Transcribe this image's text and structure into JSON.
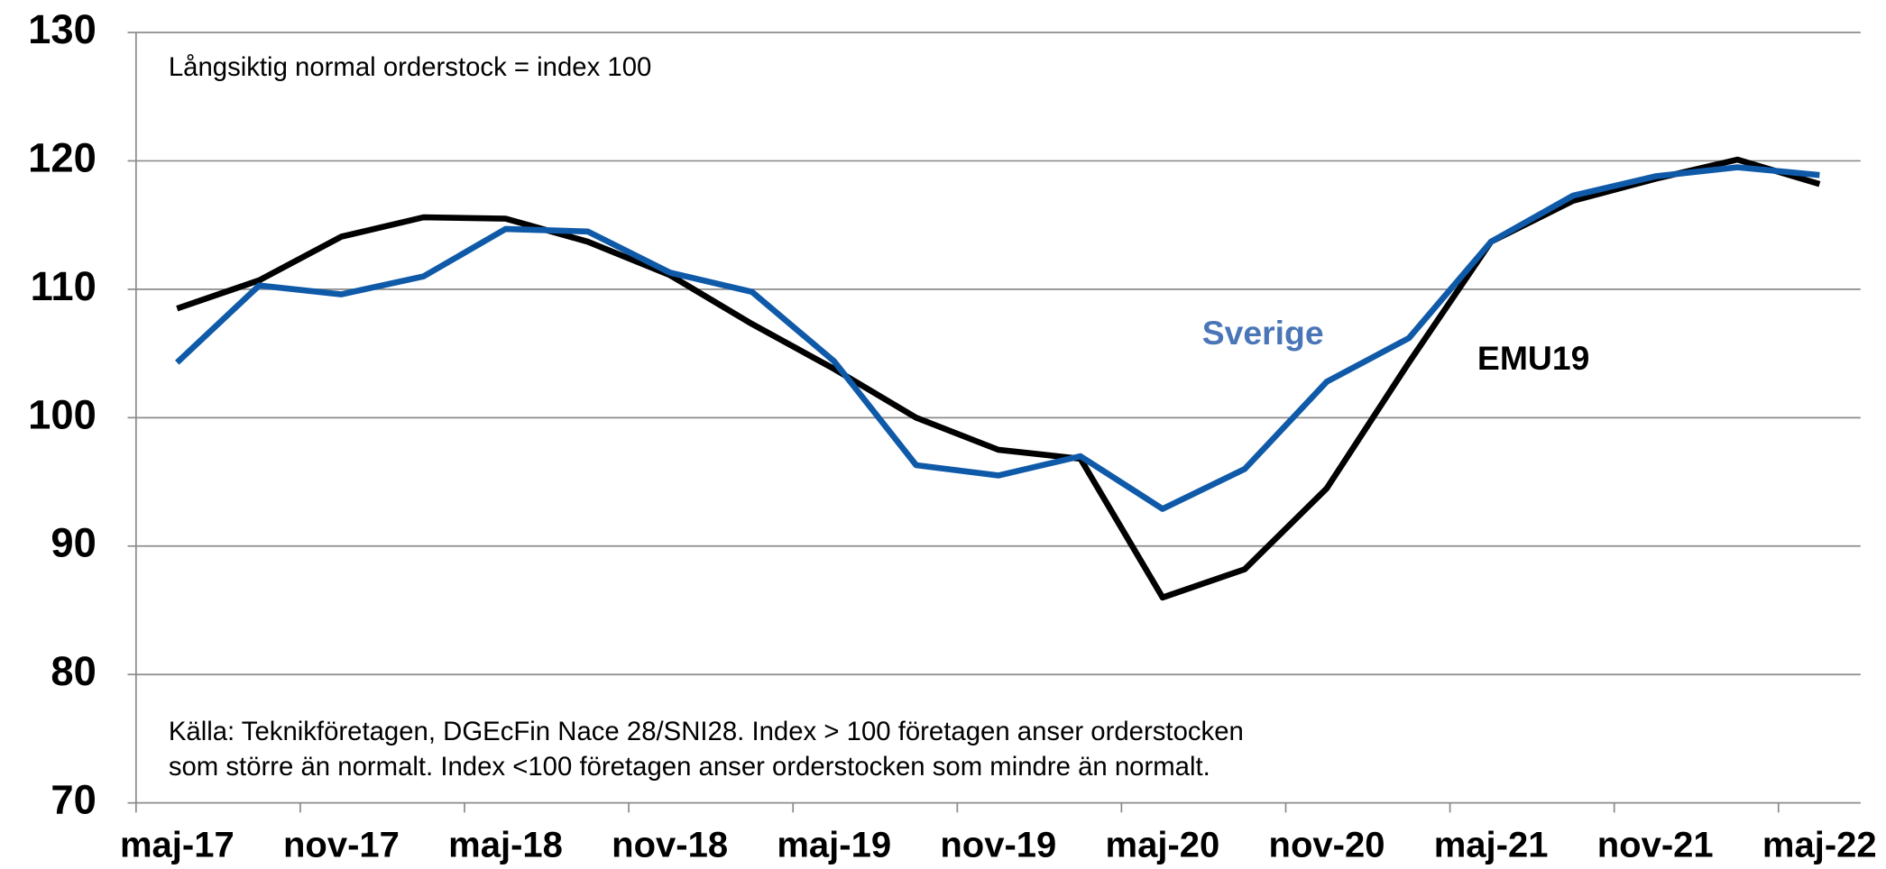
{
  "chart_data": {
    "type": "line",
    "annotations": [
      "Långsiktig normal orderstock = index 100"
    ],
    "source": [
      "Källa: Teknikföretagen, DGEcFin Nace 28/SNI28. Index > 100 företagen anser orderstocken",
      "som större än normalt. Index <100 företagen anser orderstocken som mindre än normalt."
    ],
    "categories": [
      "maj-17",
      null,
      "nov-17",
      null,
      "maj-18",
      null,
      "nov-18",
      null,
      "maj-19",
      null,
      "nov-19",
      null,
      "maj-20",
      null,
      "nov-20",
      null,
      "maj-21",
      null,
      "nov-21",
      null,
      "maj-22"
    ],
    "series": [
      {
        "name": "Sverige",
        "color": "#0f5aa8",
        "values": [
          104.3,
          110.3,
          109.6,
          111.0,
          114.7,
          114.5,
          111.3,
          109.8,
          104.4,
          96.3,
          95.5,
          97.0,
          92.9,
          96.0,
          102.8,
          106.2,
          113.7,
          117.3,
          118.8,
          119.5,
          118.9
        ]
      },
      {
        "name": "EMU19",
        "color": "#000000",
        "values": [
          108.5,
          110.7,
          114.1,
          115.6,
          115.5,
          113.7,
          111.1,
          107.3,
          103.8,
          100.0,
          97.5,
          96.8,
          86.0,
          88.2,
          94.5,
          104.3,
          113.7,
          116.9,
          118.6,
          120.1,
          118.2
        ]
      }
    ],
    "ylim": [
      70,
      130
    ],
    "yticks": [
      70,
      80,
      90,
      100,
      110,
      120,
      130
    ],
    "grid": true
  }
}
